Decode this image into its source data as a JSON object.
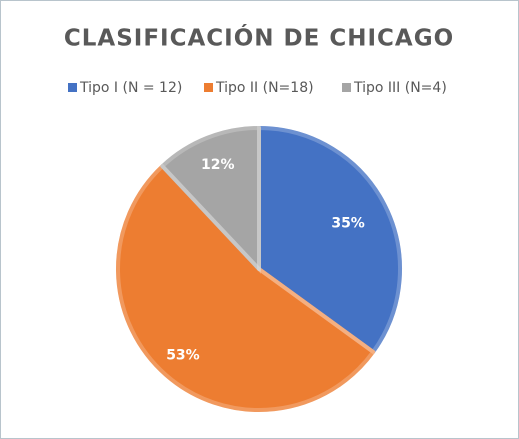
{
  "chart_data": {
    "type": "pie",
    "title": "CLASIFICACIÓN DE CHICAGO",
    "categories": [
      "Tipo I (N = 12)",
      "Tipo II (N=18)",
      "Tipo III (N=4)"
    ],
    "values": [
      35,
      53,
      12
    ],
    "value_labels": [
      "35%",
      "53%",
      "12%"
    ],
    "colors": [
      "#4472c4",
      "#ed7d31",
      "#a5a5a5"
    ],
    "legend": "top"
  }
}
